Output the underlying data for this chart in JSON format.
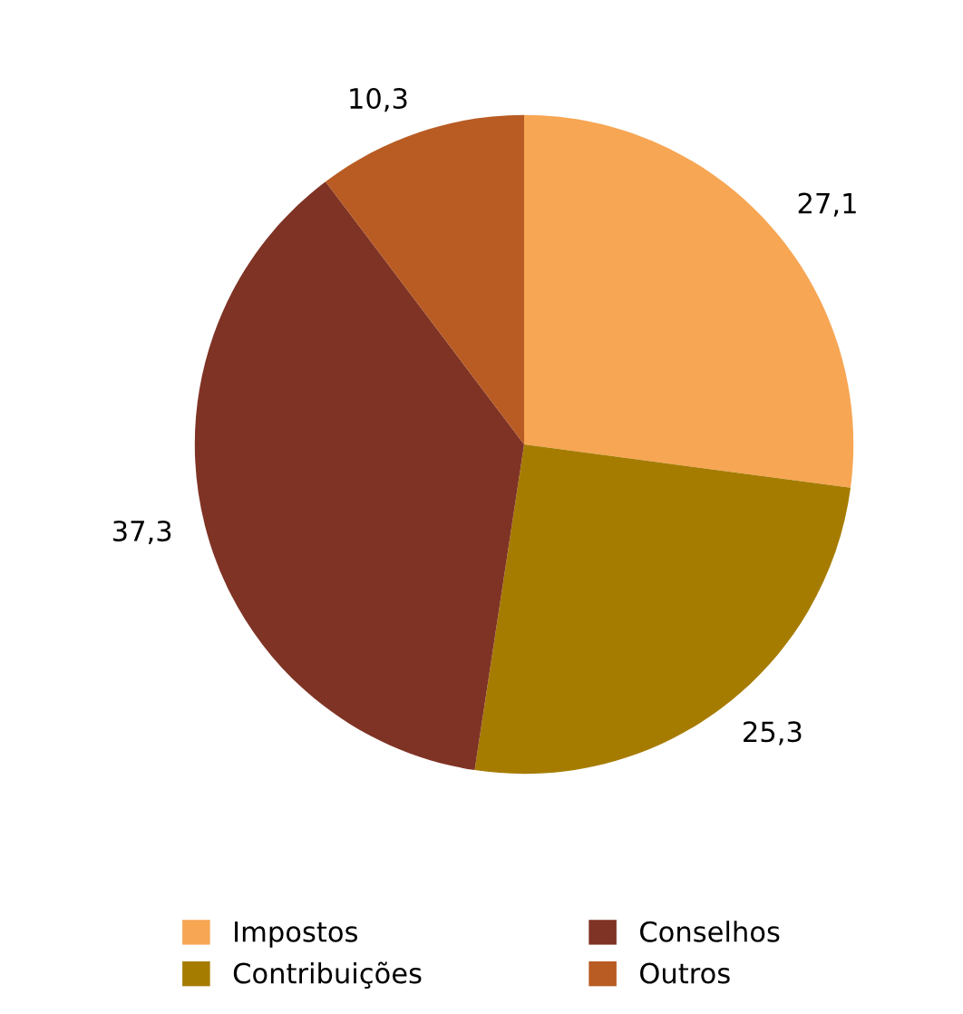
{
  "chart_data": {
    "type": "pie",
    "categories": [
      "Impostos",
      "Contribuições",
      "Conselhos",
      "Outros"
    ],
    "values": [
      27.1,
      25.3,
      37.3,
      10.3
    ],
    "colors": [
      "#f7a654",
      "#a67c00",
      "#7f3325",
      "#b85c24"
    ],
    "value_labels": [
      "27,1",
      "25,3",
      "37,3",
      "10,3"
    ],
    "legend": "bottom"
  }
}
